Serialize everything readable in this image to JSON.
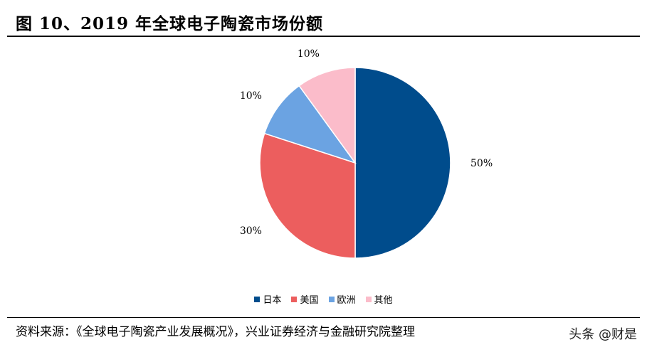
{
  "header": {
    "title": "图 10、2019 年全球电子陶瓷市场份额"
  },
  "footer": {
    "source": "资料来源：《全球电子陶瓷产业发展概况》，兴业证券经济与金融研究院整理",
    "watermark_prefix": "头条",
    "watermark_handle": "@财是"
  },
  "chart_data": {
    "type": "pie",
    "title": "",
    "start_angle_deg": 0,
    "direction": "clockwise",
    "legend_position": "bottom",
    "slices": [
      {
        "label": "日本",
        "value": 50,
        "display": "50%",
        "color": "#004C8C"
      },
      {
        "label": "美国",
        "value": 30,
        "display": "30%",
        "color": "#EC5E5E"
      },
      {
        "label": "欧洲",
        "value": 10,
        "display": "10%",
        "color": "#6BA3E2"
      },
      {
        "label": "其他",
        "value": 10,
        "display": "10%",
        "color": "#FBBCCA"
      }
    ]
  }
}
